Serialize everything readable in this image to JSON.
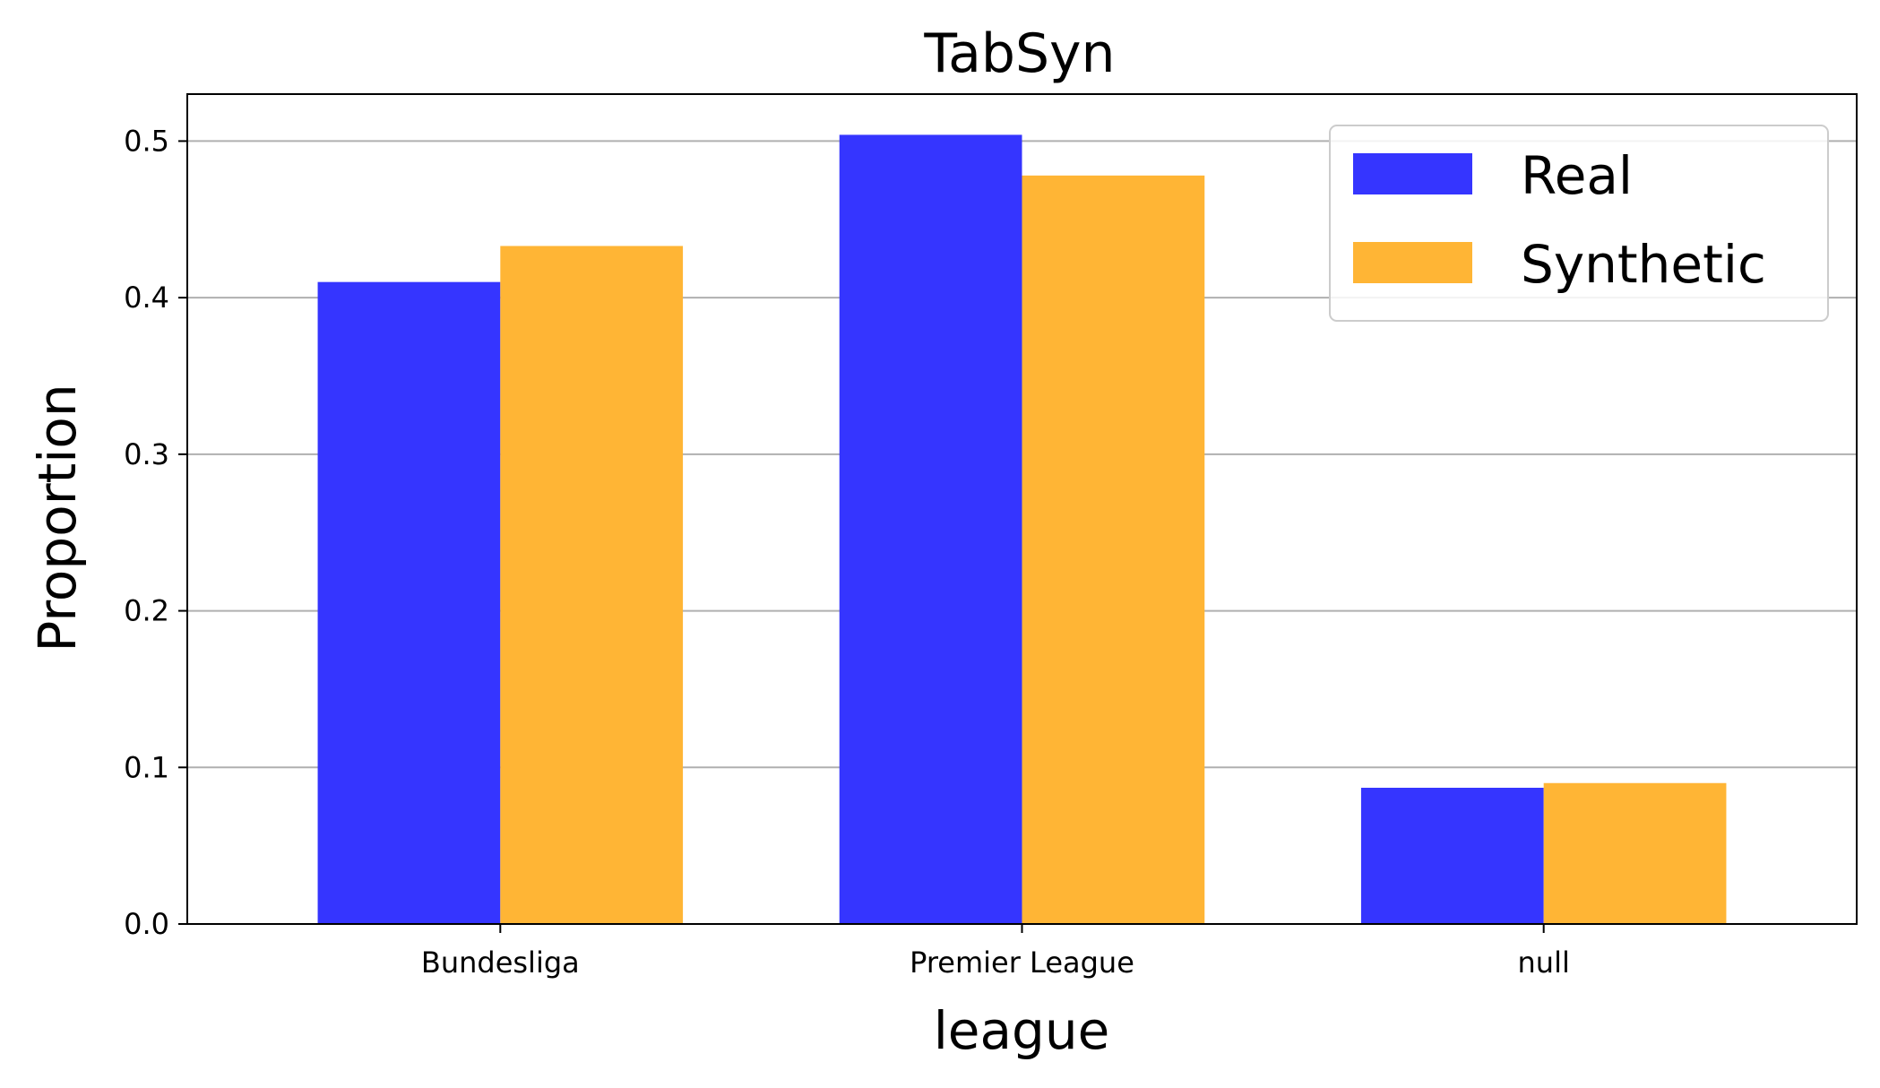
{
  "chart_data": {
    "type": "bar",
    "title": "TabSyn",
    "xlabel": "league",
    "ylabel": "Proportion",
    "categories": [
      "Bundesliga",
      "Premier League",
      "null"
    ],
    "series": [
      {
        "name": "Real",
        "values": [
          0.41,
          0.504,
          0.087
        ],
        "color": "#3535ff"
      },
      {
        "name": "Synthetic",
        "values": [
          0.433,
          0.478,
          0.09
        ],
        "color": "#ffb535"
      }
    ],
    "ylim": [
      0,
      0.53
    ],
    "yticks": [
      "0.0",
      "0.1",
      "0.2",
      "0.3",
      "0.4",
      "0.5"
    ],
    "grid": "horizontal",
    "legend_position": "top-right"
  }
}
